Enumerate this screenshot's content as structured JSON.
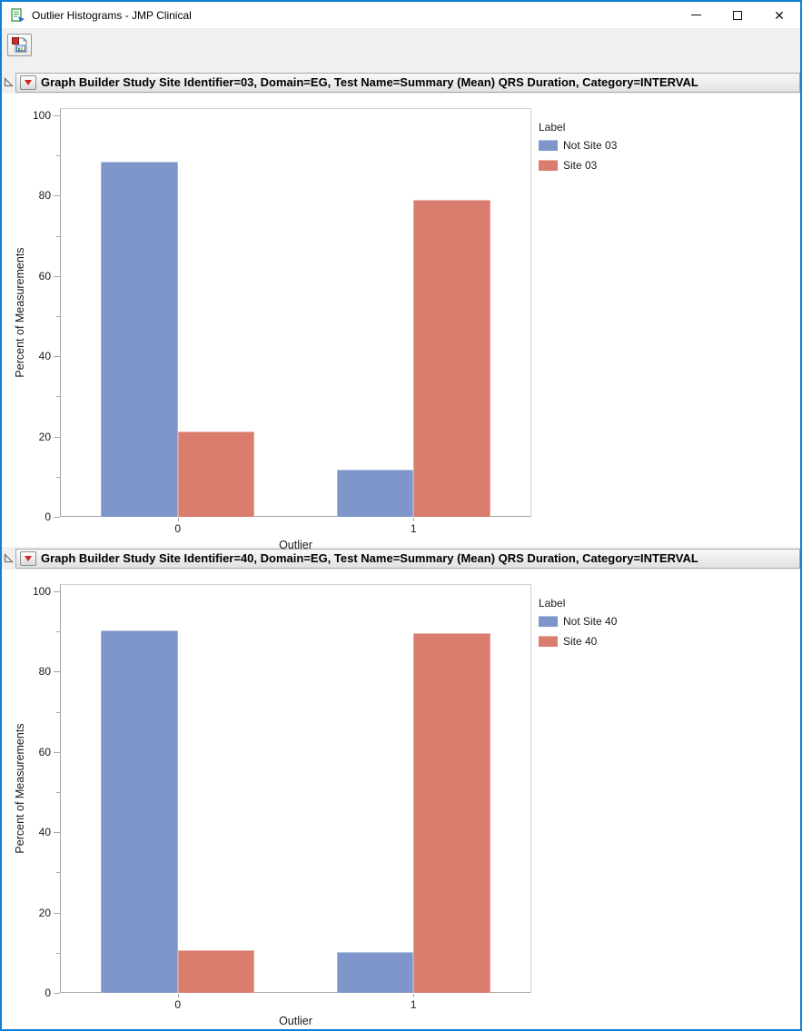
{
  "window": {
    "title": "Outlier Histograms - JMP Clinical",
    "border_color": "#0F80D7",
    "controls": {
      "minimize": "minimize",
      "maximize": "maximize",
      "close": "close"
    }
  },
  "toolbar": {
    "buttons": [
      {
        "name": "save-report-image-icon"
      }
    ]
  },
  "panels": [
    {
      "header_title": "Graph Builder Study Site Identifier=03, Domain=EG, Test Name=Summary (Mean) QRS Duration, Category=INTERVAL",
      "disclosure_state": "expanded"
    },
    {
      "header_title": "Graph Builder Study Site Identifier=40, Domain=EG, Test Name=Summary (Mean) QRS Duration, Category=INTERVAL",
      "disclosure_state": "expanded"
    }
  ],
  "chart_data": [
    {
      "type": "bar",
      "title": "Graph Builder Study Site Identifier=03, Domain=EG, Test Name=Summary (Mean) QRS Duration, Category=INTERVAL",
      "categories": [
        "0",
        "1"
      ],
      "series": [
        {
          "name": "Not Site 03",
          "color": "#7E96CA",
          "values": [
            88.5,
            11.8
          ]
        },
        {
          "name": "Site 03",
          "color": "#DB7D6E",
          "values": [
            21.2,
            79.0
          ]
        }
      ],
      "xlabel": "Outlier",
      "ylabel": "Percent of Measurements",
      "ylim": [
        0,
        100
      ],
      "yticks": [
        0,
        20,
        40,
        60,
        80,
        100
      ],
      "yticks_minor": [
        10,
        30,
        50,
        70,
        90
      ],
      "legend_title": "Label",
      "legend_position": "right",
      "grid": false
    },
    {
      "type": "bar",
      "title": "Graph Builder Study Site Identifier=40, Domain=EG, Test Name=Summary (Mean) QRS Duration, Category=INTERVAL",
      "categories": [
        "0",
        "1"
      ],
      "series": [
        {
          "name": "Not Site 40",
          "color": "#7E96CA",
          "values": [
            90.3,
            10.1
          ]
        },
        {
          "name": "Site 40",
          "color": "#DB7D6E",
          "values": [
            10.7,
            89.7
          ]
        }
      ],
      "xlabel": "Outlier",
      "ylabel": "Percent of Measurements",
      "ylim": [
        0,
        100
      ],
      "yticks": [
        0,
        20,
        40,
        60,
        80,
        100
      ],
      "yticks_minor": [
        10,
        30,
        50,
        70,
        90
      ],
      "legend_title": "Label",
      "legend_position": "right",
      "grid": false
    }
  ]
}
